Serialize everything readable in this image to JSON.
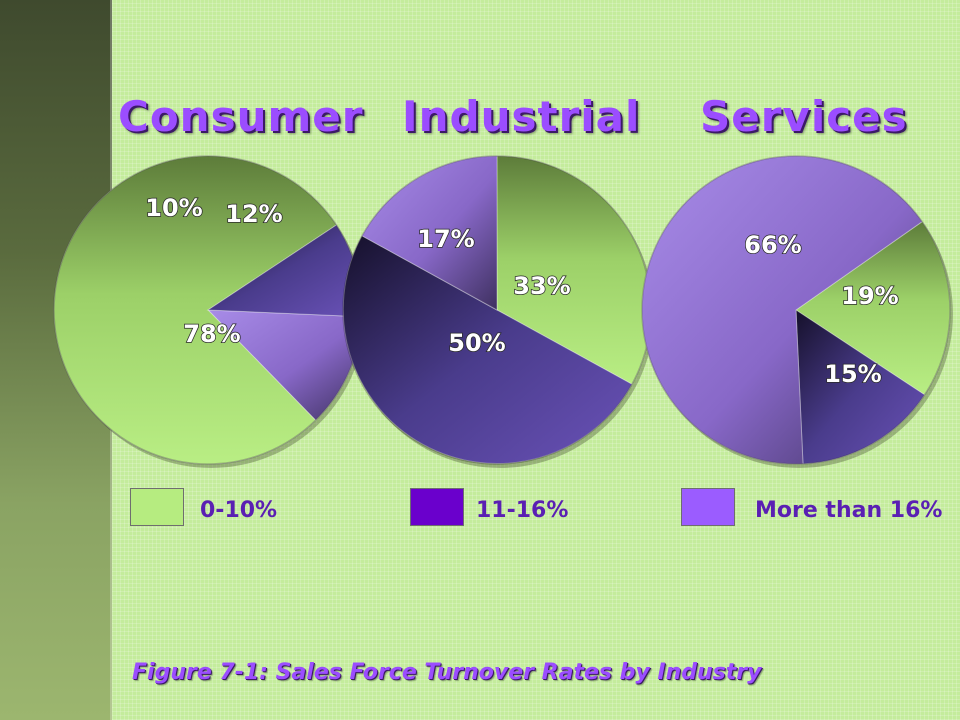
{
  "colors": {
    "low": "#b6ec80",
    "mid": "#6a00cc",
    "high": "#9b5cff",
    "title": "#9b4dff"
  },
  "legend": {
    "items": [
      {
        "label": "0-10%",
        "color": "#b6ec80"
      },
      {
        "label": "11-16%",
        "color": "#6a00cc"
      },
      {
        "label": "More than 16%",
        "color": "#9b5cff"
      }
    ]
  },
  "chart_data": [
    {
      "type": "pie",
      "title": "Consumer",
      "slices": [
        {
          "category": "0-10%",
          "value": 78,
          "label": "78%"
        },
        {
          "category": "11-16%",
          "value": 10,
          "label": "10%"
        },
        {
          "category": "More than 16%",
          "value": 12,
          "label": "12%"
        }
      ]
    },
    {
      "type": "pie",
      "title": "Industrial",
      "slices": [
        {
          "category": "0-10%",
          "value": 33,
          "label": "33%"
        },
        {
          "category": "11-16%",
          "value": 50,
          "label": "50%"
        },
        {
          "category": "More than 16%",
          "value": 17,
          "label": "17%"
        }
      ]
    },
    {
      "type": "pie",
      "title": "Services",
      "slices": [
        {
          "category": "0-10%",
          "value": 19,
          "label": "19%"
        },
        {
          "category": "11-16%",
          "value": 15,
          "label": "15%"
        },
        {
          "category": "More than 16%",
          "value": 66,
          "label": "66%"
        }
      ]
    }
  ],
  "caption": "Figure 7-1: Sales Force Turnover Rates by Industry"
}
